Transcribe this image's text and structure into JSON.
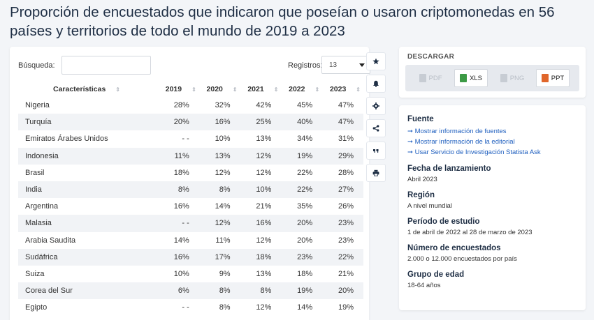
{
  "title": "Proporción de encuestados que indicaron que poseían o usaron criptomonedas en 56 países y territorios de todo el mundo de 2019 a 2023",
  "search": {
    "label": "Búsqueda:",
    "value": ""
  },
  "registros": {
    "label": "Registros:",
    "value": "13"
  },
  "toolbar": {
    "icons": [
      "star-icon",
      "bell-icon",
      "gear-icon",
      "share-icon",
      "quote-icon",
      "print-icon"
    ]
  },
  "table": {
    "headers": [
      "Características",
      "2019",
      "2020",
      "2021",
      "2022",
      "2023"
    ],
    "rows": [
      [
        "Nigeria",
        "28%",
        "32%",
        "42%",
        "45%",
        "47%"
      ],
      [
        "Turquía",
        "20%",
        "16%",
        "25%",
        "40%",
        "47%"
      ],
      [
        "Emiratos Árabes Unidos",
        "- -",
        "10%",
        "13%",
        "34%",
        "31%"
      ],
      [
        "Indonesia",
        "11%",
        "13%",
        "12%",
        "19%",
        "29%"
      ],
      [
        "Brasil",
        "18%",
        "12%",
        "12%",
        "22%",
        "28%"
      ],
      [
        "India",
        "8%",
        "8%",
        "10%",
        "22%",
        "27%"
      ],
      [
        "Argentina",
        "16%",
        "14%",
        "21%",
        "35%",
        "26%"
      ],
      [
        "Malasia",
        "- -",
        "12%",
        "16%",
        "20%",
        "23%"
      ],
      [
        "Arabia Saudita",
        "14%",
        "11%",
        "12%",
        "20%",
        "23%"
      ],
      [
        "Sudáfrica",
        "16%",
        "17%",
        "18%",
        "23%",
        "22%"
      ],
      [
        "Suiza",
        "10%",
        "9%",
        "13%",
        "18%",
        "21%"
      ],
      [
        "Corea del Sur",
        "6%",
        "8%",
        "8%",
        "19%",
        "20%"
      ],
      [
        "Egipto",
        "- -",
        "8%",
        "12%",
        "14%",
        "19%"
      ]
    ]
  },
  "download": {
    "title": "DESCARGAR",
    "buttons": [
      {
        "label": "PDF",
        "enabled": false,
        "color": "#c7ccd3"
      },
      {
        "label": "XLS",
        "enabled": true,
        "color": "#3c9a45"
      },
      {
        "label": "PNG",
        "enabled": false,
        "color": "#c7ccd3"
      },
      {
        "label": "PPT",
        "enabled": true,
        "color": "#e0662b"
      }
    ]
  },
  "info": {
    "fuente_heading": "Fuente",
    "links": [
      "➞ Mostrar información de fuentes",
      "➞ Mostrar información de la editorial",
      "➞ Usar Servicio de Investigación Statista Ask"
    ],
    "fecha_heading": "Fecha de lanzamiento",
    "fecha_value": "Abril 2023",
    "region_heading": "Región",
    "region_value": "A nivel mundial",
    "periodo_heading": "Período de estudio",
    "periodo_value": "1 de abril de 2022 al 28 de marzo de 2023",
    "encuestados_heading": "Número de encuestados",
    "encuestados_value": "2.000 o 12.000 encuestados por país",
    "edad_heading": "Grupo de edad",
    "edad_value": "18-64 años"
  }
}
